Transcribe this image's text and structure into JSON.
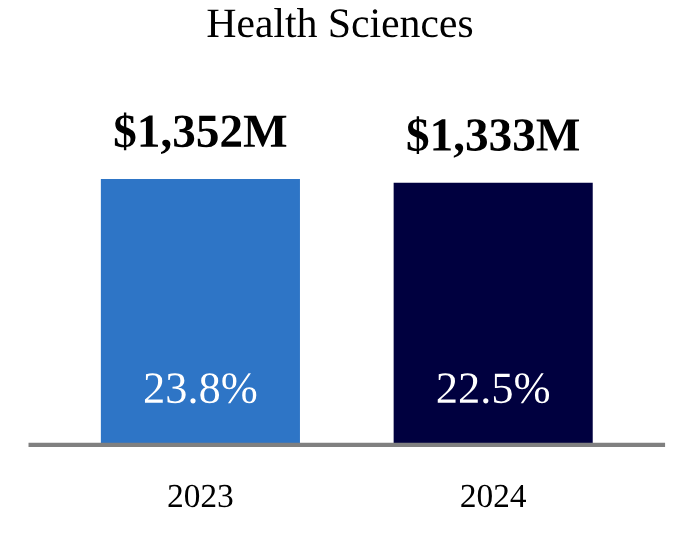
{
  "chart_data": {
    "type": "bar",
    "title": "Health Sciences",
    "categories": [
      "2023",
      "2024"
    ],
    "values": [
      1352,
      1333
    ],
    "colors": [
      "#2e75c6",
      "#00003f"
    ],
    "value_labels": [
      "$1,352M",
      "$1,333M"
    ],
    "annotations": [
      "23.8%",
      "22.5%"
    ],
    "grid": false,
    "legend": false
  }
}
